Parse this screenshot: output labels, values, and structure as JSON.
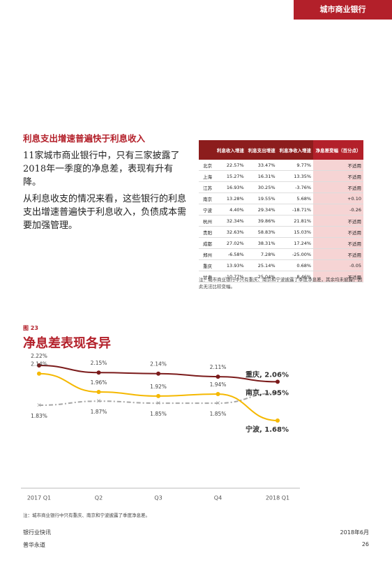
{
  "header": {
    "section": "城市商业银行"
  },
  "body": {
    "heading": "利息支出增速普遍快于利息收入",
    "paragraphs": [
      "11家城市商业银行中，只有三家披露了2018年一季度的净息差，表现有升有降。",
      "从利息收支的情况来看，这些银行的利息支出增速普遍快于利息收入，负债成本需要加强管理。"
    ]
  },
  "table": {
    "header": [
      "利息收入增速",
      "利息支出增速",
      "利息净收入增速",
      "净息差变幅（百分点）"
    ],
    "rows": [
      [
        "北京",
        "22.57%",
        "33.47%",
        "9.77%",
        "不适用"
      ],
      [
        "上海",
        "15.27%",
        "16.31%",
        "13.35%",
        "不适用"
      ],
      [
        "江苏",
        "16.93%",
        "30.25%",
        "-3.76%",
        "不适用"
      ],
      [
        "南京",
        "13.28%",
        "19.55%",
        "5.68%",
        "+0.10"
      ],
      [
        "宁波",
        "4.40%",
        "29.34%",
        "-18.71%",
        "-0.26"
      ],
      [
        "杭州",
        "32.34%",
        "39.86%",
        "21.81%",
        "不适用"
      ],
      [
        "贵阳",
        "32.63%",
        "58.83%",
        "15.03%",
        "不适用"
      ],
      [
        "成都",
        "27.02%",
        "38.31%",
        "17.24%",
        "不适用"
      ],
      [
        "郑州",
        "-6.58%",
        "7.28%",
        "-25.00%",
        "不适用"
      ],
      [
        "重庆",
        "13.93%",
        "25.14%",
        "0.68%",
        "-0.05"
      ],
      [
        "甘肃",
        "-10.77%",
        "-25.04%",
        "8.46%",
        "不适用"
      ]
    ],
    "note": "注：城市商业银行中只有重庆、南京和宁波披露了季度净息差，其余均未披露，因此无法比较变幅。"
  },
  "figure": {
    "label": "图 23",
    "note": "注：城市商业银行中只有重庆、南京和宁波披露了季度净息差。"
  },
  "chart_data": {
    "type": "line",
    "title": "净息差表现各异",
    "categories": [
      "2017 Q1",
      "Q2",
      "Q3",
      "Q4",
      "2018 Q1"
    ],
    "series": [
      {
        "name": "重庆",
        "color": "#7b1b1b",
        "values": [
          2.22,
          2.15,
          2.14,
          2.11,
          2.06
        ],
        "value_labels": [
          "2.22%",
          "2.15%",
          "2.14%",
          "2.11%",
          null
        ],
        "end_label": "重庆, 2.06%"
      },
      {
        "name": "南京",
        "color": "#a6a6a6",
        "dashed": true,
        "values": [
          1.83,
          1.87,
          1.85,
          1.85,
          1.95
        ],
        "value_labels": [
          "1.83%",
          "1.87%",
          "1.85%",
          "1.85%",
          null
        ],
        "end_label": "南京, 1.95%"
      },
      {
        "name": "宁波",
        "color": "#f5b800",
        "values": [
          2.14,
          1.96,
          1.92,
          1.94,
          1.68
        ],
        "value_labels": [
          "2.14%",
          "1.96%",
          "1.92%",
          "1.94%",
          null
        ],
        "end_label": "宁波, 1.68%"
      }
    ]
  },
  "footer": {
    "publication": "银行业快讯",
    "date": "2018年6月",
    "firm": "普华永道",
    "page": "26"
  }
}
